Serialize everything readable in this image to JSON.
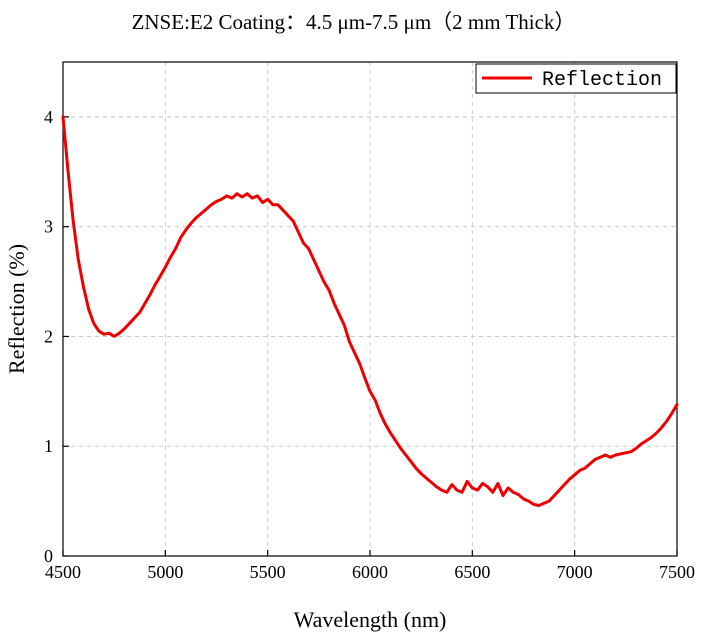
{
  "chart_data": {
    "type": "line",
    "title": "ZNSE:E2 Coating：4.5 μm-7.5 μm（2 mm Thick）",
    "xlabel": "Wavelength (nm)",
    "ylabel": "Reflection (%)",
    "xlim": [
      4500,
      7500
    ],
    "ylim": [
      0,
      4.5
    ],
    "xticks": [
      "4500",
      "5000",
      "5500",
      "6000",
      "6500",
      "7000",
      "7500"
    ],
    "yticks": [
      "0",
      "1",
      "2",
      "3",
      "4"
    ],
    "grid": true,
    "legend_position": "top-right",
    "series": [
      {
        "name": "Reflection",
        "color": "#ee0000",
        "x": [
          4500,
          4525,
          4550,
          4575,
          4600,
          4625,
          4650,
          4675,
          4700,
          4725,
          4750,
          4775,
          4800,
          4825,
          4850,
          4875,
          4900,
          4925,
          4950,
          4975,
          5000,
          5025,
          5050,
          5075,
          5100,
          5125,
          5150,
          5175,
          5200,
          5225,
          5250,
          5275,
          5300,
          5325,
          5350,
          5375,
          5400,
          5425,
          5450,
          5475,
          5500,
          5525,
          5550,
          5575,
          5600,
          5625,
          5650,
          5675,
          5700,
          5725,
          5750,
          5775,
          5800,
          5825,
          5850,
          5875,
          5900,
          5925,
          5950,
          5975,
          6000,
          6025,
          6050,
          6075,
          6100,
          6125,
          6150,
          6175,
          6200,
          6225,
          6250,
          6275,
          6300,
          6325,
          6350,
          6375,
          6400,
          6425,
          6450,
          6475,
          6500,
          6525,
          6550,
          6575,
          6600,
          6625,
          6650,
          6675,
          6700,
          6725,
          6750,
          6775,
          6800,
          6825,
          6850,
          6875,
          6900,
          6925,
          6950,
          6975,
          7000,
          7025,
          7050,
          7075,
          7100,
          7125,
          7150,
          7175,
          7200,
          7225,
          7250,
          7275,
          7300,
          7325,
          7350,
          7375,
          7400,
          7425,
          7450,
          7475,
          7500
        ],
        "values": [
          4.0,
          3.5,
          3.05,
          2.7,
          2.45,
          2.25,
          2.12,
          2.05,
          2.02,
          2.03,
          2.0,
          2.03,
          2.07,
          2.12,
          2.17,
          2.22,
          2.3,
          2.38,
          2.47,
          2.55,
          2.63,
          2.72,
          2.8,
          2.9,
          2.97,
          3.03,
          3.08,
          3.12,
          3.16,
          3.2,
          3.23,
          3.25,
          3.28,
          3.26,
          3.3,
          3.27,
          3.3,
          3.26,
          3.28,
          3.22,
          3.25,
          3.2,
          3.2,
          3.15,
          3.1,
          3.05,
          2.95,
          2.85,
          2.8,
          2.7,
          2.6,
          2.5,
          2.42,
          2.3,
          2.2,
          2.1,
          1.95,
          1.85,
          1.75,
          1.62,
          1.5,
          1.42,
          1.3,
          1.2,
          1.12,
          1.05,
          0.98,
          0.92,
          0.86,
          0.8,
          0.75,
          0.71,
          0.67,
          0.63,
          0.6,
          0.58,
          0.65,
          0.6,
          0.58,
          0.68,
          0.62,
          0.6,
          0.66,
          0.63,
          0.58,
          0.66,
          0.55,
          0.62,
          0.58,
          0.56,
          0.52,
          0.5,
          0.47,
          0.46,
          0.48,
          0.5,
          0.55,
          0.6,
          0.65,
          0.7,
          0.74,
          0.78,
          0.8,
          0.84,
          0.88,
          0.9,
          0.92,
          0.9,
          0.92,
          0.93,
          0.94,
          0.95,
          0.98,
          1.02,
          1.05,
          1.08,
          1.12,
          1.17,
          1.23,
          1.3,
          1.38
        ]
      }
    ]
  }
}
